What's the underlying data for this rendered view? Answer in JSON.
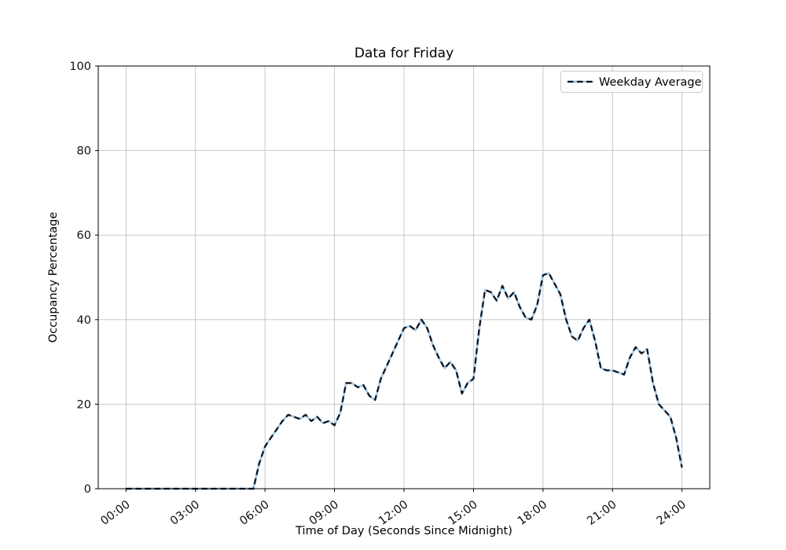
{
  "chart_data": {
    "type": "line",
    "title": "Data for Friday",
    "xlabel": "Time of Day (Seconds Since Midnight)",
    "ylabel": "Occupancy Percentage",
    "grid": true,
    "legend_position": "upper right",
    "ylim": [
      0,
      100
    ],
    "xlim_hours": [
      -1.2,
      25.2
    ],
    "y_ticks": [
      0,
      20,
      40,
      60,
      80,
      100
    ],
    "x_ticks": [
      "00:00",
      "03:00",
      "06:00",
      "09:00",
      "12:00",
      "15:00",
      "18:00",
      "21:00",
      "24:00"
    ],
    "x_tick_hours": [
      0,
      3,
      6,
      9,
      12,
      15,
      18,
      21,
      24
    ],
    "colors": {
      "line": "#0e1220",
      "line_underlay": "#a9cce3",
      "grid": "#c2c2c2",
      "spine": "#000000",
      "legend_border": "#cccccc"
    },
    "series": [
      {
        "name": "Weekday Average",
        "style": "dashed",
        "x_hours": [
          0,
          0.25,
          0.5,
          0.75,
          1,
          1.25,
          1.5,
          1.75,
          2,
          2.25,
          2.5,
          2.75,
          3,
          3.25,
          3.5,
          3.75,
          4,
          4.25,
          4.5,
          4.75,
          5,
          5.25,
          5.5,
          5.75,
          6,
          6.25,
          6.5,
          6.75,
          7,
          7.25,
          7.5,
          7.75,
          8,
          8.25,
          8.5,
          8.75,
          9,
          9.25,
          9.5,
          9.75,
          10,
          10.25,
          10.5,
          10.75,
          11,
          11.25,
          11.5,
          11.75,
          12,
          12.25,
          12.5,
          12.75,
          13,
          13.25,
          13.5,
          13.75,
          14,
          14.25,
          14.5,
          14.75,
          15,
          15.25,
          15.5,
          15.75,
          16,
          16.25,
          16.5,
          16.75,
          17,
          17.25,
          17.5,
          17.75,
          18,
          18.25,
          18.5,
          18.75,
          19,
          19.25,
          19.5,
          19.75,
          20,
          20.25,
          20.5,
          20.75,
          21,
          21.25,
          21.5,
          21.75,
          22,
          22.25,
          22.5,
          22.75,
          23,
          23.25,
          23.5,
          23.75,
          24
        ],
        "values": [
          0,
          0,
          0,
          0,
          0,
          0,
          0,
          0,
          0,
          0,
          0,
          0,
          0,
          0,
          0,
          0,
          0,
          0,
          0,
          0,
          0,
          0,
          0,
          6,
          10,
          12,
          14,
          16,
          17.5,
          17,
          16.5,
          17.5,
          16,
          17,
          15.5,
          16,
          15,
          18,
          25,
          25,
          24,
          24.5,
          22,
          21,
          26,
          29,
          32,
          35,
          38,
          38.5,
          37.5,
          40,
          38,
          34,
          31,
          28.5,
          30,
          28,
          22.5,
          25,
          26,
          38,
          47,
          46.5,
          44.5,
          48,
          45,
          46.5,
          43,
          40.5,
          40,
          43.5,
          50.5,
          51,
          48.5,
          46,
          40,
          36,
          35,
          38,
          40,
          35,
          28.5,
          28,
          28,
          27.5,
          27,
          31,
          33.5,
          32,
          33,
          25,
          20,
          18.5,
          17,
          12,
          5
        ]
      }
    ]
  }
}
